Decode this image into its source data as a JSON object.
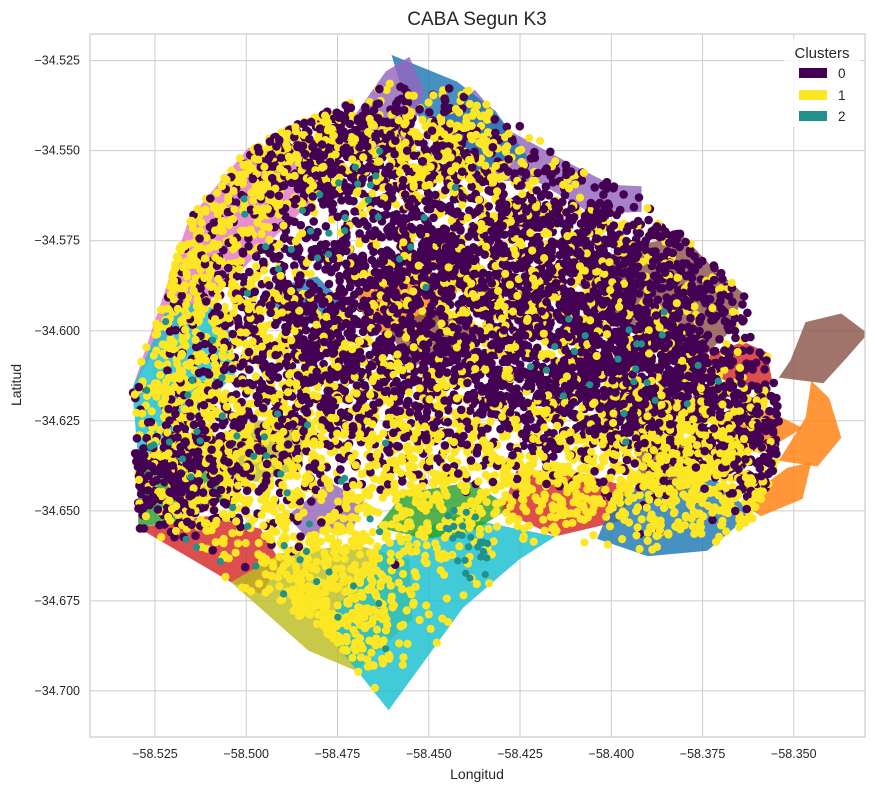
{
  "chart_data": {
    "type": "scatter",
    "title": "CABA Segun K3",
    "xlabel": "Longitud",
    "ylabel": "Latitud",
    "xlim": [
      -58.5428,
      -58.3305
    ],
    "ylim": [
      -34.7128,
      -34.5176
    ],
    "xticks": [
      -58.525,
      -58.5,
      -58.475,
      -58.45,
      -58.425,
      -58.4,
      -58.375,
      -58.35
    ],
    "xtick_labels": [
      "−58.525",
      "−58.500",
      "−58.475",
      "−58.450",
      "−58.425",
      "−58.400",
      "−58.375",
      "−58.350"
    ],
    "yticks": [
      -34.525,
      -34.55,
      -34.575,
      -34.6,
      -34.625,
      -34.65,
      -34.675,
      -34.7
    ],
    "ytick_labels": [
      "−34.525",
      "−34.550",
      "−34.575",
      "−34.600",
      "−34.625",
      "−34.650",
      "−34.675",
      "−34.700"
    ],
    "grid": true,
    "legend": {
      "title": "Clusters",
      "location": "top-right",
      "entries": [
        {
          "label": "0",
          "color": "#440154"
        },
        {
          "label": "1",
          "color": "#fde725"
        },
        {
          "label": "2",
          "color": "#21918c"
        }
      ]
    },
    "background_regions": [
      {
        "fill": "#e377c2",
        "points": [
          [
            -58.5312,
            -34.6161
          ],
          [
            -58.5157,
            -34.569
          ],
          [
            -58.4994,
            -34.5492
          ],
          [
            -58.4847,
            -34.55
          ],
          [
            -58.479,
            -34.5611
          ],
          [
            -58.4953,
            -34.577
          ],
          [
            -58.5059,
            -34.5879
          ],
          [
            -58.5247,
            -34.6045
          ]
        ]
      },
      {
        "fill": "#17becf",
        "points": [
          [
            -58.5312,
            -34.6161
          ],
          [
            -58.5206,
            -34.5912
          ],
          [
            -58.5059,
            -34.5944
          ],
          [
            -58.5026,
            -34.6114
          ],
          [
            -58.5157,
            -34.6257
          ],
          [
            -58.5296,
            -34.6361
          ]
        ]
      },
      {
        "fill": "#8c564b",
        "points": [
          [
            -58.4096,
            -34.5866
          ],
          [
            -58.3933,
            -34.5762
          ],
          [
            -58.3802,
            -34.5738
          ],
          [
            -58.3729,
            -34.5817
          ],
          [
            -58.3639,
            -34.5896
          ],
          [
            -58.3672,
            -34.6
          ],
          [
            -58.3753,
            -34.6077
          ],
          [
            -58.3868,
            -34.6033
          ],
          [
            -58.3982,
            -34.5976
          ]
        ]
      },
      {
        "fill": "#9467bd",
        "points": [
          [
            -58.4504,
            -34.5445
          ],
          [
            -58.4398,
            -34.558
          ],
          [
            -58.4202,
            -34.5587
          ],
          [
            -58.4055,
            -34.5674
          ],
          [
            -58.3917,
            -34.567
          ],
          [
            -58.3917,
            -34.5599
          ],
          [
            -58.3999,
            -34.5595
          ],
          [
            -58.412,
            -34.5532
          ],
          [
            -58.4276,
            -34.5446
          ],
          [
            -58.4374,
            -34.5331
          ]
        ]
      },
      {
        "fill": "#1f77b4",
        "points": [
          [
            -58.4423,
            -34.5308
          ],
          [
            -58.4602,
            -34.5234
          ],
          [
            -58.4569,
            -34.5346
          ],
          [
            -58.4472,
            -34.5484
          ],
          [
            -58.4406,
            -34.5563
          ],
          [
            -58.4227,
            -34.552
          ],
          [
            -58.4317,
            -34.539
          ]
        ]
      },
      {
        "fill": "#9467bd",
        "points": [
          [
            -58.47,
            -34.5398
          ],
          [
            -58.4618,
            -34.528
          ],
          [
            -58.4553,
            -34.5239
          ],
          [
            -58.4512,
            -34.5335
          ],
          [
            -58.4553,
            -34.5477
          ],
          [
            -58.4675,
            -34.5521
          ]
        ]
      },
      {
        "fill": "#ff7f0e",
        "points": [
          [
            -58.47,
            -34.5889
          ],
          [
            -58.4545,
            -34.581
          ],
          [
            -58.4415,
            -34.5873
          ],
          [
            -58.4455,
            -34.5968
          ],
          [
            -58.4618,
            -34.6016
          ],
          [
            -58.4675,
            -34.5976
          ]
        ]
      },
      {
        "fill": "#8c564b",
        "points": [
          [
            -58.461,
            -34.6
          ],
          [
            -58.4479,
            -34.5929
          ],
          [
            -58.4349,
            -34.6
          ],
          [
            -58.4423,
            -34.6087
          ],
          [
            -58.4553,
            -34.6095
          ]
        ]
      },
      {
        "fill": "#1f77b4",
        "points": [
          [
            -58.4929,
            -34.5881
          ],
          [
            -58.4806,
            -34.5849
          ],
          [
            -58.4725,
            -34.5929
          ],
          [
            -58.4798,
            -34.5984
          ],
          [
            -58.4929,
            -34.5968
          ]
        ]
      },
      {
        "fill": "#bcbd22",
        "points": [
          [
            -58.51,
            -34.63
          ],
          [
            -58.4969,
            -34.625
          ],
          [
            -58.4838,
            -34.626
          ],
          [
            -58.4847,
            -34.638
          ],
          [
            -58.4969,
            -34.642
          ],
          [
            -58.51,
            -34.64
          ]
        ]
      },
      {
        "fill": "#2ca02c",
        "points": [
          [
            -58.5296,
            -34.6361
          ],
          [
            -58.5198,
            -34.633
          ],
          [
            -58.5076,
            -34.638
          ],
          [
            -58.5043,
            -34.646
          ],
          [
            -58.5157,
            -34.652
          ],
          [
            -58.5296,
            -34.6547
          ]
        ]
      },
      {
        "fill": "#d62728",
        "points": [
          [
            -58.5296,
            -34.6547
          ],
          [
            -58.5108,
            -34.6515
          ],
          [
            -58.4961,
            -34.655
          ],
          [
            -58.4904,
            -34.6646
          ],
          [
            -58.4961,
            -34.673
          ],
          [
            -58.5042,
            -34.6698
          ]
        ]
      },
      {
        "fill": "#bcbd22",
        "points": [
          [
            -58.5042,
            -34.6698
          ],
          [
            -58.4904,
            -34.6618
          ],
          [
            -58.47,
            -34.6594
          ],
          [
            -58.4553,
            -34.6634
          ],
          [
            -58.4545,
            -34.6801
          ],
          [
            -58.47,
            -34.6944
          ],
          [
            -58.483,
            -34.6888
          ]
        ]
      },
      {
        "fill": "#17becf",
        "points": [
          [
            -58.479,
            -34.6825
          ],
          [
            -58.4627,
            -34.6594
          ],
          [
            -58.4431,
            -34.6515
          ],
          [
            -58.4153,
            -34.6571
          ],
          [
            -58.4251,
            -34.6634
          ],
          [
            -58.4406,
            -34.6769
          ],
          [
            -58.461,
            -34.7054
          ]
        ]
      },
      {
        "fill": "#2ca02c",
        "points": [
          [
            -58.4643,
            -34.6546
          ],
          [
            -58.4569,
            -34.6451
          ],
          [
            -58.4382,
            -34.642
          ],
          [
            -58.4276,
            -34.6491
          ],
          [
            -58.4374,
            -34.6554
          ],
          [
            -58.4504,
            -34.6578
          ]
        ]
      },
      {
        "fill": "#9467bd",
        "points": [
          [
            -58.4888,
            -34.6515
          ],
          [
            -58.4774,
            -34.642
          ],
          [
            -58.4676,
            -34.647
          ],
          [
            -58.4706,
            -34.6546
          ],
          [
            -58.4838,
            -34.657
          ]
        ]
      },
      {
        "fill": "#d62728",
        "points": [
          [
            -58.426,
            -34.6388
          ],
          [
            -58.41,
            -34.639
          ],
          [
            -58.3933,
            -34.644
          ],
          [
            -58.3982,
            -34.653
          ],
          [
            -58.4153,
            -34.6571
          ],
          [
            -58.43,
            -34.65
          ]
        ]
      },
      {
        "fill": "#1f77b4",
        "points": [
          [
            -58.3999,
            -34.6483
          ],
          [
            -58.386,
            -34.638
          ],
          [
            -58.3705,
            -34.642
          ],
          [
            -58.3615,
            -34.6507
          ],
          [
            -58.3737,
            -34.6611
          ],
          [
            -58.39,
            -34.6626
          ],
          [
            -58.4039,
            -34.6578
          ]
        ]
      },
      {
        "fill": "#8c564b",
        "points": [
          [
            -58.3933,
            -34.6337
          ],
          [
            -58.3819,
            -34.6301
          ],
          [
            -58.3737,
            -34.6369
          ],
          [
            -58.3802,
            -34.6451
          ],
          [
            -58.3917,
            -34.644
          ]
        ]
      },
      {
        "fill": "#ff7f0e",
        "points": [
          [
            -58.3541,
            -34.6361
          ],
          [
            -58.3468,
            -34.6242
          ],
          [
            -58.3452,
            -34.6139
          ],
          [
            -58.3403,
            -34.6187
          ],
          [
            -58.337,
            -34.6297
          ],
          [
            -58.3435,
            -34.6377
          ]
        ]
      },
      {
        "fill": "#ff7f0e",
        "points": [
          [
            -58.3647,
            -34.6477
          ],
          [
            -58.3517,
            -34.638
          ],
          [
            -58.3452,
            -34.6365
          ],
          [
            -58.3476,
            -34.6467
          ],
          [
            -58.359,
            -34.6515
          ]
        ]
      },
      {
        "fill": "#8c564b",
        "points": [
          [
            -58.3541,
            -34.613
          ],
          [
            -58.3509,
            -34.6082
          ],
          [
            -58.3468,
            -34.5976
          ],
          [
            -58.337,
            -34.5952
          ],
          [
            -58.3297,
            -34.6008
          ],
          [
            -58.3354,
            -34.6074
          ],
          [
            -58.3419,
            -34.6146
          ]
        ]
      },
      {
        "fill": "#d62728",
        "points": [
          [
            -58.3754,
            -34.6077
          ],
          [
            -58.3639,
            -34.603
          ],
          [
            -58.3574,
            -34.606
          ],
          [
            -58.3558,
            -34.6146
          ],
          [
            -58.3639,
            -34.616
          ],
          [
            -58.3705,
            -34.613
          ]
        ]
      },
      {
        "fill": "#ff7f0e",
        "points": [
          [
            -58.3705,
            -34.6257
          ],
          [
            -58.3574,
            -34.622
          ],
          [
            -58.3476,
            -34.627
          ],
          [
            -58.359,
            -34.634
          ],
          [
            -58.3705,
            -34.631
          ]
        ]
      }
    ],
    "series": [
      {
        "name": "0",
        "color": "#440154",
        "size": 4.3,
        "count": 5200,
        "centers": [
          [
            -58.48,
            -34.58,
            0.018,
            0.014
          ],
          [
            -58.46,
            -34.55,
            0.015,
            0.012
          ],
          [
            -58.49,
            -34.6,
            0.017,
            0.013
          ],
          [
            -58.5,
            -34.63,
            0.018,
            0.014
          ],
          [
            -58.47,
            -34.61,
            0.016,
            0.012
          ],
          [
            -58.44,
            -34.6,
            0.018,
            0.014
          ],
          [
            -58.42,
            -34.58,
            0.018,
            0.012
          ],
          [
            -58.41,
            -34.6,
            0.02,
            0.014
          ],
          [
            -58.39,
            -34.6,
            0.016,
            0.013
          ],
          [
            -58.38,
            -34.58,
            0.016,
            0.01
          ],
          [
            -58.44,
            -34.62,
            0.016,
            0.012
          ],
          [
            -58.4,
            -34.61,
            0.018,
            0.012
          ],
          [
            -58.38,
            -34.62,
            0.014,
            0.011
          ],
          [
            -58.42,
            -34.57,
            0.016,
            0.01
          ],
          [
            -58.45,
            -34.58,
            0.014,
            0.01
          ],
          [
            -58.52,
            -34.64,
            0.01,
            0.008
          ],
          [
            -58.48,
            -34.55,
            0.012,
            0.008
          ],
          [
            -58.36,
            -34.63,
            0.01,
            0.01
          ],
          [
            -58.4,
            -34.62,
            0.014,
            0.01
          ]
        ]
      },
      {
        "name": "1",
        "color": "#fde725",
        "size": 4.1,
        "count": 4300,
        "centers": [
          [
            -58.52,
            -34.6,
            0.008,
            0.024
          ],
          [
            -58.51,
            -34.64,
            0.014,
            0.016
          ],
          [
            -58.49,
            -34.62,
            0.018,
            0.018
          ],
          [
            -58.47,
            -34.66,
            0.016,
            0.014
          ],
          [
            -58.48,
            -34.68,
            0.012,
            0.008
          ],
          [
            -58.51,
            -34.58,
            0.012,
            0.014
          ],
          [
            -58.49,
            -34.55,
            0.012,
            0.01
          ],
          [
            -58.44,
            -34.64,
            0.02,
            0.01
          ],
          [
            -58.41,
            -34.64,
            0.018,
            0.01
          ],
          [
            -58.38,
            -34.63,
            0.012,
            0.012
          ],
          [
            -58.46,
            -34.61,
            0.018,
            0.02
          ],
          [
            -58.43,
            -34.58,
            0.018,
            0.018
          ],
          [
            -58.4,
            -34.6,
            0.022,
            0.02
          ],
          [
            -58.45,
            -34.55,
            0.014,
            0.008
          ],
          [
            -58.37,
            -34.64,
            0.01,
            0.01
          ]
        ]
      },
      {
        "name": "2",
        "color": "#21918c",
        "size": 3.6,
        "count": 260,
        "centers": [
          [
            -58.49,
            -34.67,
            0.018,
            0.016
          ],
          [
            -58.52,
            -34.62,
            0.01,
            0.018
          ],
          [
            -58.47,
            -34.57,
            0.014,
            0.01
          ],
          [
            -58.44,
            -34.66,
            0.006,
            0.006
          ],
          [
            -58.4,
            -34.61,
            0.016,
            0.01
          ],
          [
            -58.48,
            -34.64,
            0.012,
            0.01
          ]
        ]
      }
    ]
  }
}
